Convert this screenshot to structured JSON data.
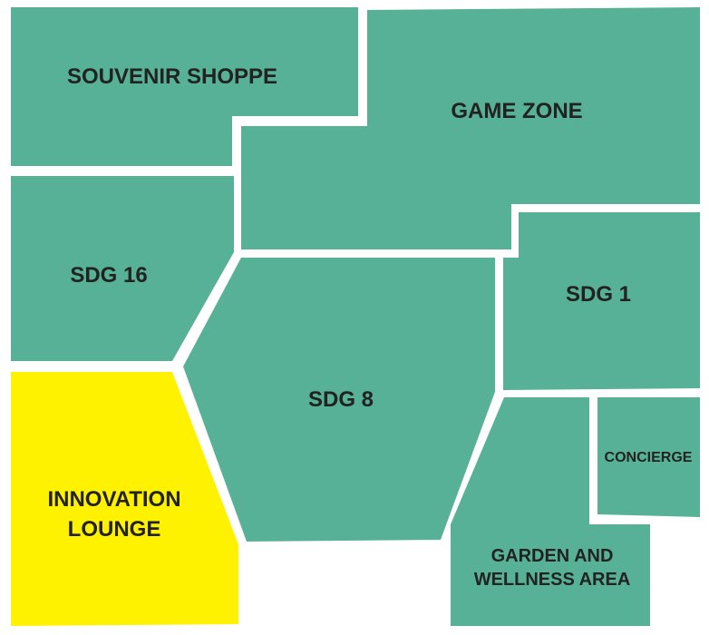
{
  "map": {
    "background_color": "#ffffff",
    "default_zone_color": "#57b196",
    "highlight_color": "#fff200",
    "label_color": "#222222",
    "highlighted_zone": "innovation-lounge",
    "zones": {
      "souvenir_shoppe": {
        "label": "SOUVENIR SHOPPE"
      },
      "game_zone": {
        "label": "GAME ZONE"
      },
      "sdg16": {
        "label": "SDG 16"
      },
      "sdg1": {
        "label": "SDG 1"
      },
      "sdg8": {
        "label": "SDG 8"
      },
      "innovation_lounge": {
        "label_line1": "INNOVATION",
        "label_line2": "LOUNGE"
      },
      "concierge": {
        "label": "CONCIERGE"
      },
      "garden": {
        "label_line1": "GARDEN AND",
        "label_line2": "WELLNESS AREA"
      }
    }
  }
}
